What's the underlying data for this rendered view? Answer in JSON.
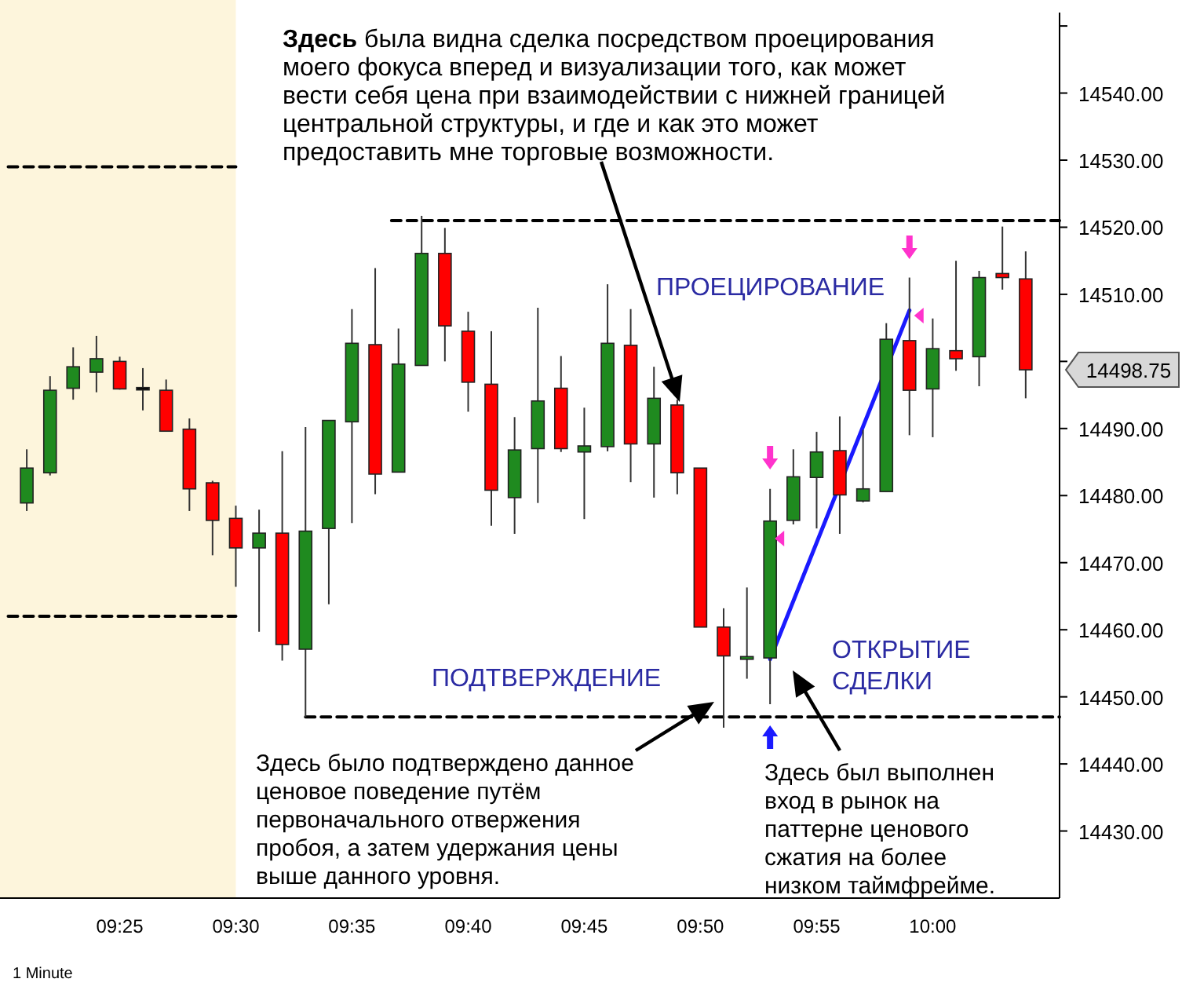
{
  "chart_data": {
    "type": "candlestick",
    "x": [
      9.35,
      9.3667,
      9.3833,
      9.4,
      9.4167,
      9.4333,
      9.45,
      9.4667,
      9.4833,
      9.5,
      9.5167,
      9.5333,
      9.55,
      9.5667,
      9.5833,
      9.6,
      9.6167,
      9.6333,
      9.65,
      9.6667,
      9.6833,
      9.7,
      9.7167,
      9.7333,
      9.75,
      9.7667,
      9.7833,
      9.8,
      9.8167,
      9.8333,
      9.85,
      9.8667,
      9.8833,
      9.9,
      9.9167,
      9.9333,
      9.95,
      9.9667,
      9.9833,
      10,
      10.0167,
      10.0333,
      10.05,
      10.0667
    ],
    "ohlc": [
      [
        14478.9,
        14486.9,
        14477.7,
        14484.1
      ],
      [
        14483.4,
        14497.8,
        14483.0,
        14495.7
      ],
      [
        14496.0,
        14502.1,
        14494.3,
        14499.2
      ],
      [
        14498.4,
        14503.8,
        14495.4,
        14500.4
      ],
      [
        14500.0,
        14500.7,
        14495.8,
        14495.9
      ],
      [
        14496.1,
        14499.0,
        14492.7,
        14496.1
      ],
      [
        14495.7,
        14497.3,
        14489.6,
        14489.6
      ],
      [
        14489.9,
        14491.5,
        14477.7,
        14481.0
      ],
      [
        14481.9,
        14482.2,
        14471.1,
        14476.3
      ],
      [
        14476.6,
        14478.5,
        14466.4,
        14472.2
      ],
      [
        14472.2,
        14477.9,
        14459.7,
        14474.4
      ],
      [
        14474.4,
        14486.6,
        14455.4,
        14457.8
      ],
      [
        14457.1,
        14490.2,
        14447.0,
        14474.7
      ],
      [
        14475.1,
        14491.2,
        14463.8,
        14491.2
      ],
      [
        14491.0,
        14507.8,
        14475.9,
        14502.7
      ],
      [
        14502.5,
        14513.9,
        14480.2,
        14483.2
      ],
      [
        14483.5,
        14504.9,
        14483.5,
        14499.6
      ],
      [
        14499.4,
        14521.7,
        14499.4,
        14516.1
      ],
      [
        14516.1,
        14519.9,
        14500.0,
        14505.3
      ],
      [
        14504.5,
        14507.4,
        14492.5,
        14496.9
      ],
      [
        14496.6,
        14504.5,
        14475.5,
        14480.8
      ],
      [
        14479.7,
        14491.7,
        14474.3,
        14486.8
      ],
      [
        14487.0,
        14508.0,
        14478.9,
        14494.1
      ],
      [
        14496.0,
        14500.8,
        14486.5,
        14487.0
      ],
      [
        14486.5,
        14493.1,
        14476.5,
        14487.4
      ],
      [
        14487.3,
        14511.5,
        14486.6,
        14502.7
      ],
      [
        14502.4,
        14507.8,
        14482.0,
        14487.7
      ],
      [
        14487.7,
        14499.2,
        14479.7,
        14494.5
      ],
      [
        14493.5,
        14494.3,
        14480.2,
        14483.4
      ],
      [
        14484.1,
        14484.1,
        14460.4,
        14460.4
      ],
      [
        14460.4,
        14463.2,
        14445.4,
        14456.1
      ],
      [
        14455.6,
        14466.3,
        14452.7,
        14456.0
      ],
      [
        14455.8,
        14481.0,
        14448.9,
        14476.2
      ],
      [
        14476.3,
        14486.9,
        14475.7,
        14482.8
      ],
      [
        14482.7,
        14489.5,
        14475.1,
        14486.5
      ],
      [
        14486.7,
        14491.8,
        14474.3,
        14480.1
      ],
      [
        14479.2,
        14489.8,
        14479.0,
        14481.0
      ],
      [
        14480.6,
        14505.7,
        14480.6,
        14503.3
      ],
      [
        14503.1,
        14512.5,
        14489.0,
        14495.7
      ],
      [
        14495.9,
        14506.4,
        14488.7,
        14501.9
      ],
      [
        14501.6,
        14515.0,
        14498.6,
        14500.4
      ],
      [
        14500.7,
        14513.5,
        14496.3,
        14512.5
      ],
      [
        14513.1,
        14520.1,
        14510.7,
        14512.5
      ],
      [
        14512.3,
        14516.4,
        14494.5,
        14498.75
      ]
    ],
    "colors": [
      "#1f8a1f",
      "#1f8a1f",
      "#1f8a1f",
      "#1f8a1f",
      "#ff0000",
      "#000000",
      "#ff0000",
      "#ff0000",
      "#ff0000",
      "#ff0000",
      "#1f8a1f",
      "#ff0000",
      "#1f8a1f",
      "#1f8a1f",
      "#1f8a1f",
      "#ff0000",
      "#1f8a1f",
      "#1f8a1f",
      "#ff0000",
      "#ff0000",
      "#ff0000",
      "#1f8a1f",
      "#1f8a1f",
      "#ff0000",
      "#1f8a1f",
      "#1f8a1f",
      "#ff0000",
      "#1f8a1f",
      "#ff0000",
      "#ff0000",
      "#ff0000",
      "#1f8a1f",
      "#1f8a1f",
      "#1f8a1f",
      "#1f8a1f",
      "#ff0000",
      "#1f8a1f",
      "#1f8a1f",
      "#ff0000",
      "#1f8a1f",
      "#ff0000",
      "#1f8a1f",
      "#ff0000",
      "#ff0000"
    ],
    "series": [
      {
        "type": "line",
        "color": "#000000",
        "line_style": "dashed",
        "x": [
          9.3367,
          9.5
        ],
        "values": [
          14529,
          14529
        ]
      },
      {
        "type": "line",
        "color": "#000000",
        "line_style": "dashed",
        "x": [
          9.3367,
          9.5
        ],
        "values": [
          14462,
          14462
        ]
      },
      {
        "type": "line",
        "color": "#000000",
        "line_style": "dashed",
        "x": [
          9.6117,
          10.091
        ],
        "values": [
          14521,
          14521
        ]
      },
      {
        "type": "line",
        "color": "#000000",
        "line_style": "dashed",
        "x": [
          9.55,
          10.091
        ],
        "values": [
          14447,
          14447
        ]
      },
      {
        "type": "line",
        "color": "#1a1aff",
        "line_style": "solid",
        "x": [
          9.8833,
          9.9833
        ],
        "values": [
          14455.6,
          14507.6
        ]
      }
    ],
    "bands": [
      {
        "axis": "x",
        "from": 9.3308,
        "to": 9.5,
        "color": "#fdf5dc"
      }
    ],
    "xlim": [
      9.3308,
      10.091
    ],
    "xticks": [
      {
        "value": 9.4167,
        "label": "09:25"
      },
      {
        "value": 9.5,
        "label": "09:30"
      },
      {
        "value": 9.5833,
        "label": "09:35"
      },
      {
        "value": 9.6667,
        "label": "09:40"
      },
      {
        "value": 9.75,
        "label": "09:45"
      },
      {
        "value": 9.8333,
        "label": "09:50"
      },
      {
        "value": 9.9167,
        "label": "09:55"
      },
      {
        "value": 10,
        "label": "10:00"
      }
    ],
    "ylim": [
      14420,
      14552
    ],
    "yticks": [
      {
        "value": 14430,
        "label": "14430.00"
      },
      {
        "value": 14440,
        "label": "14440.00"
      },
      {
        "value": 14450,
        "label": "14450.00"
      },
      {
        "value": 14460,
        "label": "14460.00"
      },
      {
        "value": 14470,
        "label": "14470.00"
      },
      {
        "value": 14480,
        "label": "14480.00"
      },
      {
        "value": 14490,
        "label": "14490.00"
      },
      {
        "value": 14500,
        "label": null
      },
      {
        "value": 14510,
        "label": "14510.00"
      },
      {
        "value": 14520,
        "label": "14520.00"
      },
      {
        "value": 14530,
        "label": "14530.00"
      },
      {
        "value": 14540,
        "label": "14540.00"
      },
      {
        "value": 14550,
        "label": null
      }
    ],
    "annotations": [
      "Здесь была видна сделка посредством проецирования моего фокуса вперед и визуализации того, как может вести себя цена при взаимодействии с нижней границей центральной структуры, и где и как это может предоставить мне торговые возможности.",
      "ПРОЕЦИРОВАНИЕ",
      "ПОДТВЕРЖДЕНИЕ",
      "ОТКРЫТИЕ СДЕЛКИ",
      "Здесь было подтверждено данное ценовое поведение путём первоначального отвержения пробоя, а затем удержания цены выше данного уровня.",
      "Здесь был выполнен вход в рынок на паттерне ценового сжатия на более низком таймфрейме.",
      "1 Minute",
      "14498.75"
    ]
  }
}
